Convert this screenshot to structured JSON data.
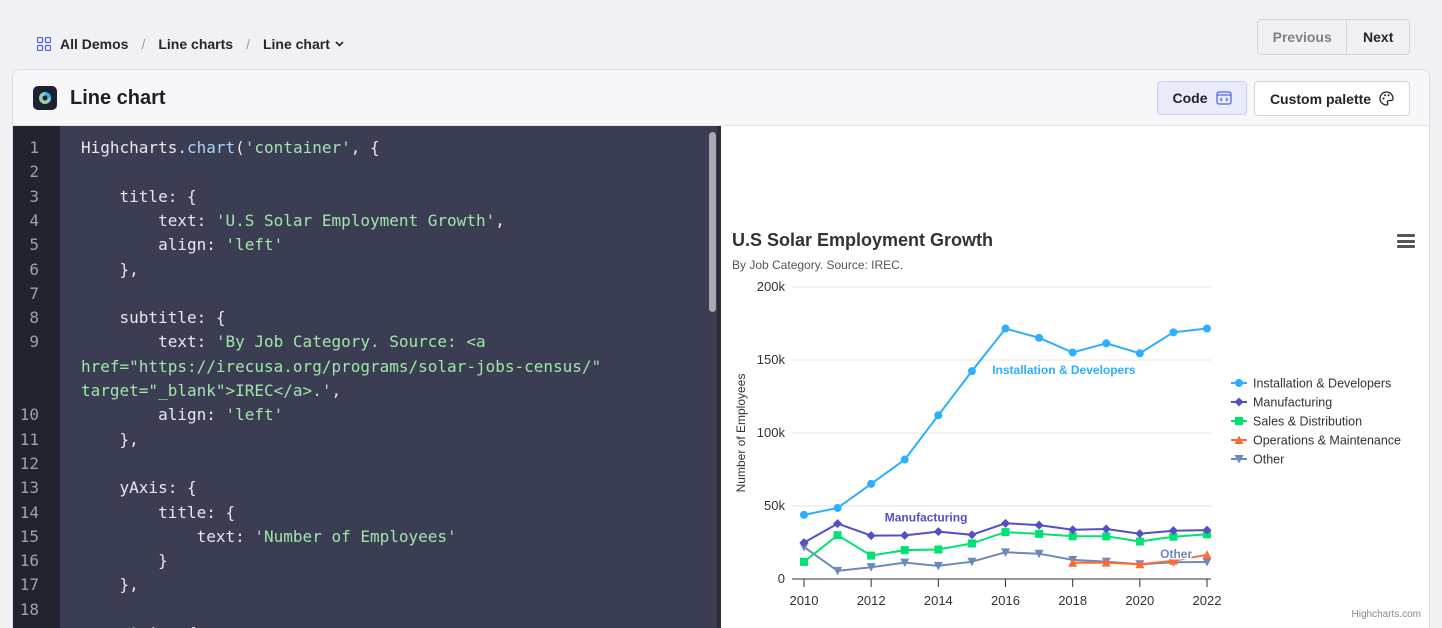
{
  "breadcrumb": {
    "items": [
      {
        "label": "All Demos"
      },
      {
        "label": "Line charts"
      },
      {
        "label": "Line chart"
      }
    ],
    "separator": "/"
  },
  "pager": {
    "previous": "Previous",
    "next": "Next"
  },
  "card": {
    "title": "Line chart",
    "code_button": "Code",
    "palette_button": "Custom palette"
  },
  "editor": {
    "lines": [
      {
        "n": "1",
        "html": "Highcharts.<span class='fn'>chart</span>(<span class='s'>'container'</span>, {"
      },
      {
        "n": "2",
        "html": ""
      },
      {
        "n": "3",
        "html": "    title: {"
      },
      {
        "n": "4",
        "html": "        text: <span class='s'>'U.S Solar Employment Growth'</span>,"
      },
      {
        "n": "5",
        "html": "        align: <span class='s'>'left'</span>"
      },
      {
        "n": "6",
        "html": "    },"
      },
      {
        "n": "7",
        "html": ""
      },
      {
        "n": "8",
        "html": "    subtitle: {"
      },
      {
        "n": "9",
        "html": "        text: <span class='s'>'By Job Category. Source: &lt;a</span>"
      },
      {
        "n": "",
        "html": "<span class='s'>href=\"https://irecusa.org/programs/solar-jobs-census/\"</span>"
      },
      {
        "n": "",
        "html": "<span class='s'>target=\"_blank\"&gt;IREC&lt;/a&gt;.'</span>,"
      },
      {
        "n": "10",
        "html": "        align: <span class='s'>'left'</span>"
      },
      {
        "n": "11",
        "html": "    },"
      },
      {
        "n": "12",
        "html": ""
      },
      {
        "n": "13",
        "html": "    yAxis: {"
      },
      {
        "n": "14",
        "html": "        title: {"
      },
      {
        "n": "15",
        "html": "            text: <span class='s'>'Number of Employees'</span>"
      },
      {
        "n": "16",
        "html": "        }"
      },
      {
        "n": "17",
        "html": "    },"
      },
      {
        "n": "18",
        "html": ""
      },
      {
        "n": "",
        "html": "    xAxis: {"
      }
    ]
  },
  "chart": {
    "title": "U.S Solar Employment Growth",
    "subtitle": "By Job Category. Source: IREC.",
    "credits": "Highcharts.com"
  },
  "chart_data": {
    "type": "line",
    "title": "U.S Solar Employment Growth",
    "subtitle": "By Job Category. Source: IREC.",
    "ylabel": "Number of Employees",
    "xlabel": "",
    "ylim": [
      0,
      200000
    ],
    "yticks": [
      0,
      50000,
      100000,
      150000,
      200000
    ],
    "ytick_labels": [
      "0",
      "50k",
      "100k",
      "150k",
      "200k"
    ],
    "xlim": [
      2010,
      2022
    ],
    "xticks": [
      2010,
      2012,
      2014,
      2016,
      2018,
      2020,
      2022
    ],
    "x": [
      2010,
      2011,
      2012,
      2013,
      2014,
      2015,
      2016,
      2017,
      2018,
      2019,
      2020,
      2021,
      2022
    ],
    "legend_position": "right",
    "grid": true,
    "series": [
      {
        "name": "Installation & Developers",
        "color": "#2caffe",
        "marker": "circle",
        "values": [
          43934,
          48656,
          65165,
          81827,
          112143,
          142383,
          171533,
          165174,
          155157,
          161454,
          154610,
          168960,
          171558
        ],
        "label": "Installation & Developers"
      },
      {
        "name": "Manufacturing",
        "color": "#544fc5",
        "marker": "diamond",
        "values": [
          24916,
          37941,
          29742,
          29851,
          32490,
          30282,
          38121,
          36885,
          33726,
          34243,
          31050,
          33099,
          33473
        ],
        "label": "Manufacturing"
      },
      {
        "name": "Sales & Distribution",
        "color": "#00e272",
        "marker": "square",
        "values": [
          11744,
          30000,
          16005,
          19771,
          20185,
          24377,
          32147,
          30912,
          29243,
          29213,
          25663,
          28978,
          30618
        ],
        "label": ""
      },
      {
        "name": "Operations & Maintenance",
        "color": "#fe6a35",
        "marker": "triangle",
        "values": [
          null,
          null,
          null,
          null,
          null,
          null,
          null,
          null,
          11164,
          11218,
          10077,
          12530,
          16585
        ],
        "label": ""
      },
      {
        "name": "Other",
        "color": "#6b8abc",
        "marker": "triangle-down",
        "values": [
          21908,
          5548,
          8105,
          11248,
          8989,
          11816,
          18274,
          17300,
          13053,
          11906,
          10073,
          11471,
          11648
        ],
        "label": "Other"
      }
    ]
  },
  "colors": {
    "accent": "#2caffe",
    "editor_bg": "#3b3d52",
    "string": "#a2e5ac",
    "code_button_bg": "#e8ebfa"
  }
}
